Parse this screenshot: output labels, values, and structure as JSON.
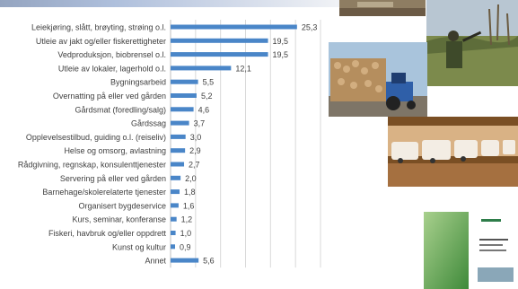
{
  "chart_data": {
    "type": "bar",
    "orientation": "horizontal",
    "categories": [
      "Leiekjøring, slått, brøyting, strøing o.l.",
      "Utleie av jakt og/eller fiskerettigheter",
      "Vedproduksjon, biobrensel o.l.",
      "Utleie av lokaler, lagerhold o.l.",
      "Bygningsarbeid",
      "Overnatting på eller ved gården",
      "Gårdsmat (foredling/salg)",
      "Gårdssag",
      "Opplevelsestilbud, guiding o.l. (reiseliv)",
      "Helse og omsorg, avlastning",
      "Rådgivning, regnskap, konsulenttjenester",
      "Servering på eller ved gården",
      "Barnehage/skolerelaterte tjenester",
      "Organisert bygdeservice",
      "Kurs, seminar, konferanse",
      "Fiskeri, havbruk og/eller oppdrett",
      "Kunst og kultur",
      "Annet"
    ],
    "values": [
      25.3,
      19.5,
      19.5,
      12.1,
      5.5,
      5.2,
      4.6,
      3.7,
      3.0,
      2.9,
      2.7,
      2.0,
      1.8,
      1.6,
      1.2,
      1.0,
      0.9,
      5.6
    ],
    "data_labels": [
      "25,3",
      "19,5",
      "19,5",
      "12,1",
      "5,5",
      "5,2",
      "4,6",
      "3,7",
      "3,0",
      "2,9",
      "2,7",
      "2,0",
      "1,8",
      "1,6",
      "1,2",
      "1,0",
      "0,9",
      "5,6"
    ],
    "xlim": [
      0,
      30
    ],
    "grid": true,
    "bar_color": "#4a86c8",
    "grid_color": "#d9d9d9"
  },
  "photos": [
    {
      "name": "landscape-photo",
      "colors": [
        "#7a6a55",
        "#b9a88c"
      ]
    },
    {
      "name": "hunter-photo",
      "colors": [
        "#a9b8c7",
        "#6d7f45"
      ]
    },
    {
      "name": "firewood-tractor-photo",
      "colors": [
        "#8a6a45",
        "#c9a478"
      ]
    },
    {
      "name": "caravan-storage-photo",
      "colors": [
        "#6b4520",
        "#e3c29a"
      ]
    },
    {
      "name": "report-cover-photo",
      "colors": [
        "#6fae63",
        "#ffffff"
      ]
    }
  ]
}
